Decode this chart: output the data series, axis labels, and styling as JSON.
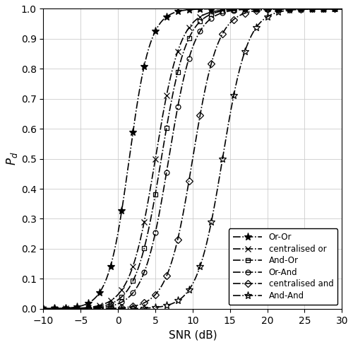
{
  "snr_dense": [
    -10,
    -9.5,
    -9,
    -8.5,
    -8,
    -7.5,
    -7,
    -6.5,
    -6,
    -5.5,
    -5,
    -4.5,
    -4,
    -3.5,
    -3,
    -2.5,
    -2,
    -1.5,
    -1,
    -0.5,
    0,
    0.5,
    1,
    1.5,
    2,
    2.5,
    3,
    3.5,
    4,
    4.5,
    5,
    5.5,
    6,
    6.5,
    7,
    7.5,
    8,
    8.5,
    9,
    9.5,
    10,
    10.5,
    11,
    11.5,
    12,
    12.5,
    13,
    13.5,
    14,
    14.5,
    15,
    15.5,
    16,
    16.5,
    17,
    17.5,
    18,
    18.5,
    19,
    19.5,
    20,
    21,
    22,
    23,
    24,
    25,
    26,
    27,
    28,
    29,
    30
  ],
  "curves": {
    "or_or": {
      "label": "Or-Or",
      "inflection": 1.5,
      "steepness": 0.72,
      "marker": "*",
      "ms": 8,
      "mfc": "black"
    },
    "centralised_or": {
      "label": "centralised or",
      "inflection": 5.0,
      "steepness": 0.6,
      "marker": "x",
      "ms": 6,
      "mfc": "black"
    },
    "and_or": {
      "label": "And-Or",
      "inflection": 5.8,
      "steepness": 0.6,
      "marker": "s",
      "ms": 5,
      "mfc": "none"
    },
    "or_and": {
      "label": "Or-And",
      "inflection": 6.8,
      "steepness": 0.6,
      "marker": "o",
      "ms": 5,
      "mfc": "none"
    },
    "centralised_and": {
      "label": "centralised and",
      "inflection": 10.0,
      "steepness": 0.6,
      "marker": "D",
      "ms": 5,
      "mfc": "none"
    },
    "and_and": {
      "label": "And-And",
      "inflection": 14.0,
      "steepness": 0.6,
      "marker": "*",
      "ms": 8,
      "mfc": "none"
    }
  },
  "curve_order": [
    "or_or",
    "centralised_or",
    "and_or",
    "or_and",
    "centralised_and",
    "and_and"
  ],
  "xlabel": "SNR (dB)",
  "ylabel": "$P_d$",
  "xlim": [
    -10,
    30
  ],
  "ylim": [
    0,
    1.0
  ],
  "yticks": [
    0.0,
    0.1,
    0.2,
    0.3,
    0.4,
    0.5,
    0.6,
    0.7,
    0.8,
    0.9,
    1.0
  ],
  "xticks": [
    -10,
    -5,
    0,
    5,
    10,
    15,
    20,
    25,
    30
  ],
  "grid": true,
  "legend_loc": "lower right",
  "figsize": [
    5.0,
    4.88
  ],
  "dpi": 100,
  "markevery": 3,
  "linewidth": 1.2,
  "color": "black",
  "linestyle": "-."
}
